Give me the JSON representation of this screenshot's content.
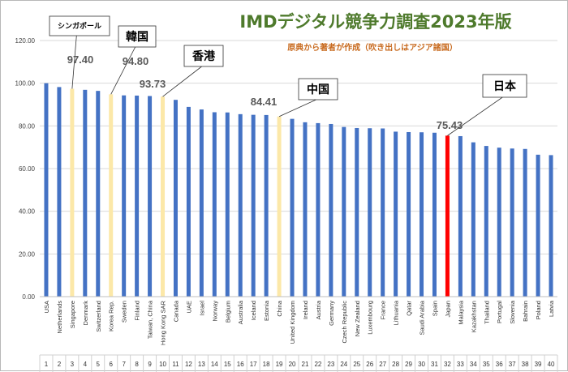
{
  "chart_data": {
    "type": "bar",
    "title": "IMDデジタル競争力調査2023年版",
    "subtitle": "原典から著者が作成（吹き出しはアジア諸国）",
    "ylim": [
      0,
      120
    ],
    "yticks": [
      "0.00",
      "20.00",
      "40.00",
      "60.00",
      "80.00",
      "100.00",
      "120.00"
    ],
    "grid": true,
    "categories": [
      "USA",
      "Netherlands",
      "Singapore",
      "Denmark",
      "Switzerland",
      "Korea Rep.",
      "Sweden",
      "Finland",
      "Taiwan, China",
      "Hong Kong SAR",
      "Canada",
      "UAE",
      "Israel",
      "Norway",
      "Belgium",
      "Australia",
      "Iceland",
      "Estonia",
      "China",
      "United Kingdom",
      "Ireland",
      "Austria",
      "Germany",
      "Czech Republic",
      "New Zealand",
      "Luxembourg",
      "France",
      "Lithuania",
      "Qatar",
      "Saudi Arabia",
      "Spain",
      "Japan",
      "Malaysia",
      "Kazakhstan",
      "Thailand",
      "Portugal",
      "Slovenia",
      "Bahrain",
      "Poland",
      "Latvia"
    ],
    "ranks": [
      "1",
      "2",
      "3",
      "4",
      "5",
      "6",
      "7",
      "8",
      "9",
      "10",
      "11",
      "12",
      "13",
      "14",
      "15",
      "16",
      "17",
      "18",
      "19",
      "20",
      "21",
      "22",
      "23",
      "24",
      "25",
      "26",
      "27",
      "28",
      "29",
      "30",
      "31",
      "32",
      "33",
      "34",
      "35",
      "36",
      "37",
      "38",
      "39",
      "40"
    ],
    "values": [
      100.0,
      98.2,
      97.4,
      96.9,
      96.4,
      94.8,
      94.3,
      94.2,
      94.0,
      93.73,
      92.2,
      88.9,
      87.7,
      86.4,
      86.3,
      85.5,
      85.2,
      85.1,
      84.41,
      83.3,
      81.7,
      81.3,
      80.9,
      79.5,
      79.0,
      78.9,
      78.8,
      77.3,
      77.1,
      77.0,
      76.8,
      75.43,
      75.2,
      72.3,
      70.6,
      69.8,
      69.4,
      69.2,
      66.5,
      66.3
    ],
    "colors": {
      "default": "#4472c4",
      "asia": "#fce8a8",
      "japan": "#ff0000"
    },
    "highlight": {
      "asia": [
        "Singapore",
        "Korea Rep.",
        "Hong Kong SAR",
        "China"
      ],
      "japan": [
        "Japan"
      ]
    },
    "annotations": [
      {
        "category": "Singapore",
        "country": "シンガポール",
        "value_label": "97.40"
      },
      {
        "category": "Korea Rep.",
        "country": "韓国",
        "value_label": "94.80"
      },
      {
        "category": "Hong Kong SAR",
        "country": "香港",
        "value_label": "93.73"
      },
      {
        "category": "China",
        "country": "中国",
        "value_label": "84.41"
      },
      {
        "category": "Japan",
        "country": "日本",
        "value_label": "75.43"
      }
    ]
  }
}
